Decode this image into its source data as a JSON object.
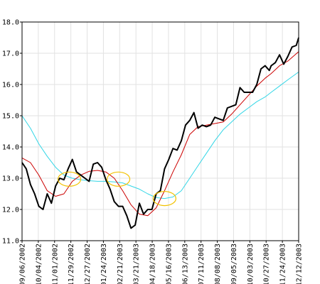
{
  "chart_data": {
    "type": "line",
    "title": "",
    "xlabel": "",
    "ylabel": "",
    "ylim": [
      11.0,
      18.0
    ],
    "yticks": [
      "11.0",
      "12.0",
      "13.0",
      "14.0",
      "15.0",
      "16.0",
      "17.0",
      "18.0"
    ],
    "xticks": [
      "09/06/2002",
      "10/04/2002",
      "11/01/2002",
      "11/29/2002",
      "12/27/2002",
      "01/24/2003",
      "02/21/2003",
      "03/21/2003",
      "04/18/2003",
      "05/16/2003",
      "06/13/2003",
      "07/11/2003",
      "08/08/2003",
      "09/05/2003",
      "10/03/2003",
      "10/27/2003",
      "11/24/2003",
      "12/12/2003"
    ],
    "grid": true,
    "x_range": [
      "09/06/2002",
      "12/12/2003"
    ],
    "series": [
      {
        "key": "price",
        "color": "#000000",
        "points": [
          [
            "09/06/2002",
            13.5
          ],
          [
            "09/13/2002",
            13.3
          ],
          [
            "09/20/2002",
            12.8
          ],
          [
            "09/27/2002",
            12.5
          ],
          [
            "10/04/2002",
            12.1
          ],
          [
            "10/11/2002",
            12.0
          ],
          [
            "10/18/2002",
            12.5
          ],
          [
            "10/25/2002",
            12.2
          ],
          [
            "11/01/2002",
            12.75
          ],
          [
            "11/08/2002",
            13.0
          ],
          [
            "11/15/2002",
            12.95
          ],
          [
            "11/22/2002",
            13.3
          ],
          [
            "11/29/2002",
            13.6
          ],
          [
            "12/06/2002",
            13.2
          ],
          [
            "12/13/2002",
            13.1
          ],
          [
            "12/20/2002",
            13.0
          ],
          [
            "12/27/2002",
            12.9
          ],
          [
            "01/03/2003",
            13.45
          ],
          [
            "01/10/2003",
            13.5
          ],
          [
            "01/17/2003",
            13.35
          ],
          [
            "01/24/2003",
            12.95
          ],
          [
            "01/31/2003",
            12.65
          ],
          [
            "02/07/2003",
            12.25
          ],
          [
            "02/14/2003",
            12.1
          ],
          [
            "02/21/2003",
            12.1
          ],
          [
            "02/28/2003",
            11.8
          ],
          [
            "03/07/2003",
            11.4
          ],
          [
            "03/14/2003",
            11.5
          ],
          [
            "03/21/2003",
            12.2
          ],
          [
            "03/28/2003",
            11.85
          ],
          [
            "04/04/2003",
            12.0
          ],
          [
            "04/11/2003",
            12.0
          ],
          [
            "04/18/2003",
            12.5
          ],
          [
            "04/25/2003",
            12.6
          ],
          [
            "05/02/2003",
            13.3
          ],
          [
            "05/09/2003",
            13.6
          ],
          [
            "05/16/2003",
            13.95
          ],
          [
            "05/23/2003",
            13.9
          ],
          [
            "05/30/2003",
            14.2
          ],
          [
            "06/06/2003",
            14.7
          ],
          [
            "06/13/2003",
            14.85
          ],
          [
            "06/20/2003",
            15.1
          ],
          [
            "06/27/2003",
            14.6
          ],
          [
            "07/04/2003",
            14.7
          ],
          [
            "07/11/2003",
            14.65
          ],
          [
            "07/18/2003",
            14.7
          ],
          [
            "07/25/2003",
            14.95
          ],
          [
            "08/01/2003",
            14.9
          ],
          [
            "08/08/2003",
            14.85
          ],
          [
            "08/15/2003",
            15.25
          ],
          [
            "08/22/2003",
            15.3
          ],
          [
            "08/29/2003",
            15.35
          ],
          [
            "09/05/2003",
            15.9
          ],
          [
            "09/12/2003",
            15.75
          ],
          [
            "09/19/2003",
            15.75
          ],
          [
            "09/26/2003",
            15.75
          ],
          [
            "10/03/2003",
            16.0
          ],
          [
            "10/10/2003",
            16.5
          ],
          [
            "10/17/2003",
            16.6
          ],
          [
            "10/24/2003",
            16.45
          ],
          [
            "10/27/2003",
            16.6
          ],
          [
            "11/03/2003",
            16.7
          ],
          [
            "11/10/2003",
            16.95
          ],
          [
            "11/17/2003",
            16.65
          ],
          [
            "11/24/2003",
            16.9
          ],
          [
            "12/01/2003",
            17.2
          ],
          [
            "12/08/2003",
            17.25
          ],
          [
            "12/12/2003",
            17.5
          ]
        ]
      },
      {
        "key": "short-moving-average",
        "color": "#cc0000",
        "points": [
          [
            "09/06/2002",
            13.65
          ],
          [
            "09/20/2002",
            13.5
          ],
          [
            "10/04/2002",
            13.1
          ],
          [
            "10/18/2002",
            12.6
          ],
          [
            "11/01/2002",
            12.42
          ],
          [
            "11/15/2002",
            12.5
          ],
          [
            "11/29/2002",
            12.9
          ],
          [
            "12/13/2002",
            13.1
          ],
          [
            "12/27/2002",
            13.22
          ],
          [
            "01/10/2003",
            13.25
          ],
          [
            "01/24/2003",
            13.2
          ],
          [
            "02/07/2003",
            13.0
          ],
          [
            "02/21/2003",
            12.6
          ],
          [
            "03/07/2003",
            12.15
          ],
          [
            "03/21/2003",
            11.85
          ],
          [
            "04/04/2003",
            11.8
          ],
          [
            "04/18/2003",
            12.05
          ],
          [
            "05/02/2003",
            12.6
          ],
          [
            "05/16/2003",
            13.2
          ],
          [
            "05/30/2003",
            13.75
          ],
          [
            "06/13/2003",
            14.4
          ],
          [
            "06/27/2003",
            14.65
          ],
          [
            "07/11/2003",
            14.7
          ],
          [
            "07/25/2003",
            14.75
          ],
          [
            "08/08/2003",
            14.8
          ],
          [
            "08/22/2003",
            15.05
          ],
          [
            "09/05/2003",
            15.35
          ],
          [
            "09/19/2003",
            15.65
          ],
          [
            "10/03/2003",
            15.95
          ],
          [
            "10/17/2003",
            16.2
          ],
          [
            "10/27/2003",
            16.35
          ],
          [
            "11/10/2003",
            16.6
          ],
          [
            "11/24/2003",
            16.75
          ],
          [
            "12/12/2003",
            17.05
          ]
        ]
      },
      {
        "key": "long-moving-average",
        "color": "#33d6e6",
        "points": [
          [
            "09/06/2002",
            15.0
          ],
          [
            "09/20/2002",
            14.6
          ],
          [
            "10/04/2002",
            14.1
          ],
          [
            "10/18/2002",
            13.7
          ],
          [
            "11/01/2002",
            13.35
          ],
          [
            "11/15/2002",
            13.1
          ],
          [
            "11/29/2002",
            13.0
          ],
          [
            "12/13/2002",
            12.95
          ],
          [
            "12/27/2002",
            12.92
          ],
          [
            "01/10/2003",
            12.9
          ],
          [
            "01/24/2003",
            12.9
          ],
          [
            "02/07/2003",
            12.88
          ],
          [
            "02/21/2003",
            12.85
          ],
          [
            "03/07/2003",
            12.75
          ],
          [
            "03/21/2003",
            12.65
          ],
          [
            "04/04/2003",
            12.5
          ],
          [
            "04/18/2003",
            12.38
          ],
          [
            "05/02/2003",
            12.35
          ],
          [
            "05/16/2003",
            12.4
          ],
          [
            "05/30/2003",
            12.6
          ],
          [
            "06/13/2003",
            13.0
          ],
          [
            "06/27/2003",
            13.4
          ],
          [
            "07/11/2003",
            13.8
          ],
          [
            "07/25/2003",
            14.2
          ],
          [
            "08/08/2003",
            14.55
          ],
          [
            "08/22/2003",
            14.8
          ],
          [
            "09/05/2003",
            15.05
          ],
          [
            "09/19/2003",
            15.25
          ],
          [
            "10/03/2003",
            15.45
          ],
          [
            "10/17/2003",
            15.6
          ],
          [
            "10/27/2003",
            15.75
          ],
          [
            "11/10/2003",
            15.95
          ],
          [
            "11/24/2003",
            16.15
          ],
          [
            "12/12/2003",
            16.4
          ]
        ]
      }
    ],
    "crossover_markers": {
      "color": "#f2c200",
      "points": [
        [
          "11/24/2002",
          12.97
        ],
        [
          "02/14/2003",
          12.97
        ],
        [
          "05/02/2003",
          12.35
        ]
      ]
    }
  }
}
